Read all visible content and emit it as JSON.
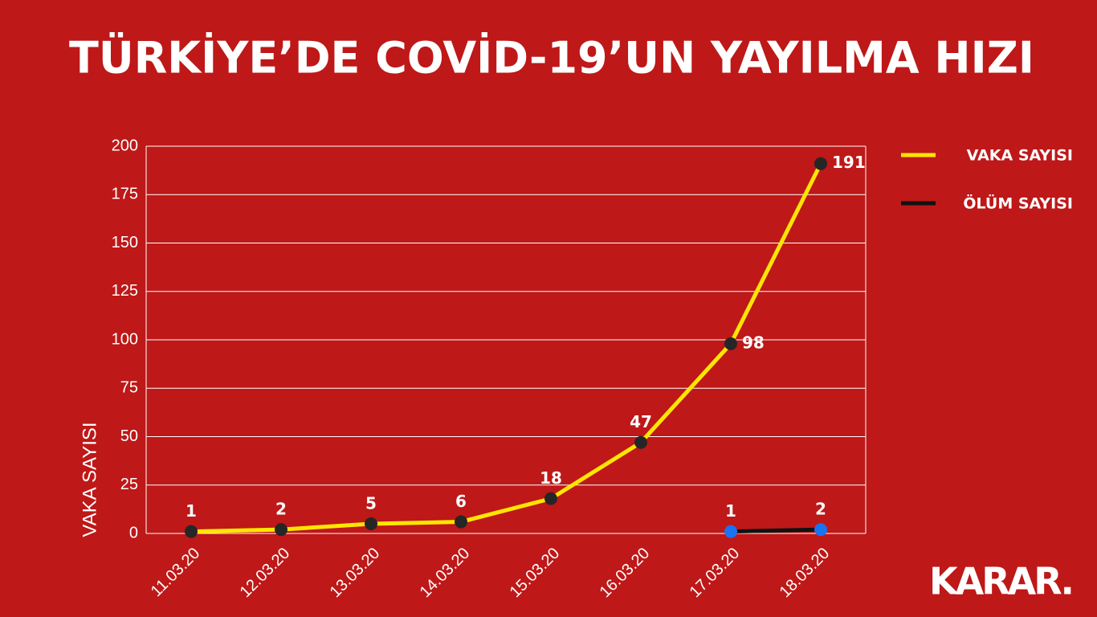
{
  "chart_data": {
    "type": "line",
    "title": "TÜRKİYE’DE COVİD-19’UN YAYILMA HIZI",
    "y_label": "VAKA SAYISI",
    "categories": [
      "11.03.20",
      "12.03.20",
      "13.03.20",
      "14.03.20",
      "15.03.20",
      "16.03.20",
      "17.03.20",
      "18.03.20"
    ],
    "series": [
      {
        "name": "VAKA SAYISI",
        "color": "#ffe600",
        "marker_color": "#262626",
        "values": [
          1,
          2,
          5,
          6,
          18,
          47,
          98,
          191
        ]
      },
      {
        "name": "ÖLÜM SAYISI",
        "color": "#111111",
        "marker_color": "#1a73f0",
        "values": [
          null,
          null,
          null,
          null,
          null,
          null,
          1,
          2
        ]
      }
    ],
    "ylim": [
      0,
      200
    ],
    "yticks": [
      0,
      25,
      50,
      75,
      100,
      125,
      150,
      175,
      200
    ],
    "grid": true,
    "legend": "right"
  },
  "brand": "KARAR."
}
